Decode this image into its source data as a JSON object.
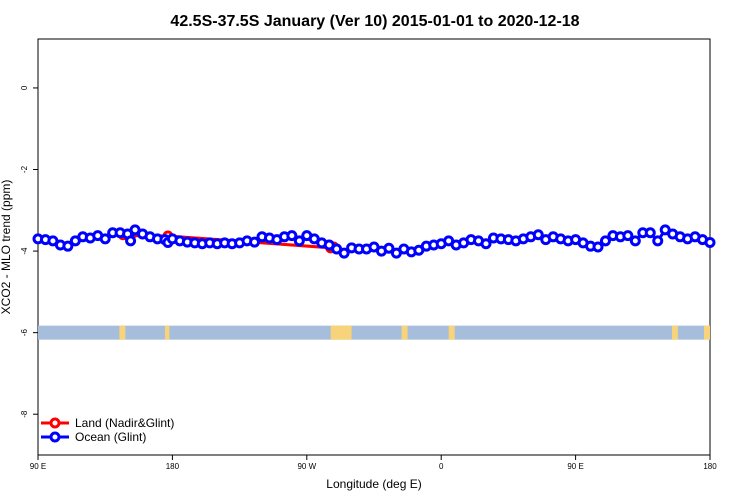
{
  "chart_data": {
    "type": "line",
    "title": "42.5S-37.5S January (Ver 10)   2015-01-01 to 2020-12-18",
    "xlabel": "Longitude (deg E)",
    "ylabel": "XCO2 - MLO trend (ppm)",
    "xlim": [
      90,
      540
    ],
    "ylim": [
      -9,
      1.2
    ],
    "xticks": [
      {
        "value": 90,
        "label": "90 E"
      },
      {
        "value": 180,
        "label": "180"
      },
      {
        "value": 270,
        "label": "90 W"
      },
      {
        "value": 360,
        "label": "0"
      },
      {
        "value": 450,
        "label": "90 E"
      },
      {
        "value": 540,
        "label": "180"
      }
    ],
    "yticks": [
      {
        "value": 0,
        "label": "0"
      },
      {
        "value": -2,
        "label": "-2"
      },
      {
        "value": -4,
        "label": "-4"
      },
      {
        "value": -6,
        "label": "-6"
      },
      {
        "value": -8,
        "label": "-8"
      }
    ],
    "legend_position": "bottom-left",
    "land_sea_strip": {
      "y_center": -6,
      "ocean_color": "#a6bddb",
      "land_color": "#f7d47a",
      "land_x_ranges": [
        [
          144.5,
          148.5
        ],
        [
          175,
          178
        ],
        [
          286,
          300
        ],
        [
          333.5,
          337.5
        ],
        [
          365,
          369
        ],
        [
          514.5,
          518.5
        ],
        [
          536,
          540
        ]
      ]
    },
    "series": [
      {
        "name": "Land (Nadir&Glint)",
        "color": "#ff0000",
        "x": [
          147,
          152,
          177,
          286,
          288
        ],
        "y": [
          -3.6,
          -3.62,
          -3.63,
          -3.92,
          -3.9
        ]
      },
      {
        "name": "Ocean (Glint)",
        "color": "#0000ff",
        "x": [
          90,
          95,
          100,
          105,
          110,
          115,
          120,
          125,
          130,
          135,
          140,
          145,
          150,
          152,
          155,
          160,
          165,
          170,
          175,
          177,
          180,
          185,
          190,
          195,
          200,
          205,
          210,
          215,
          220,
          225,
          230,
          235,
          240,
          245,
          250,
          255,
          260,
          265,
          270,
          275,
          280,
          285,
          290,
          295,
          300,
          305,
          310,
          315,
          320,
          325,
          330,
          335,
          340,
          345,
          350,
          355,
          360,
          365,
          370,
          375,
          380,
          385,
          390,
          395,
          400,
          405,
          410,
          415,
          420,
          425,
          430,
          435,
          440,
          445,
          450,
          455,
          460,
          465,
          470,
          475,
          480,
          485,
          490,
          495,
          500,
          505,
          510,
          515,
          520,
          525,
          530,
          535,
          540
        ],
        "y": [
          -3.7,
          -3.72,
          -3.75,
          -3.85,
          -3.88,
          -3.75,
          -3.65,
          -3.68,
          -3.62,
          -3.7,
          -3.55,
          -3.55,
          -3.58,
          -3.75,
          -3.48,
          -3.58,
          -3.65,
          -3.7,
          -3.72,
          -3.79,
          -3.7,
          -3.75,
          -3.78,
          -3.8,
          -3.82,
          -3.8,
          -3.82,
          -3.8,
          -3.82,
          -3.8,
          -3.75,
          -3.78,
          -3.65,
          -3.68,
          -3.72,
          -3.65,
          -3.62,
          -3.75,
          -3.62,
          -3.7,
          -3.8,
          -3.85,
          -3.95,
          -4.05,
          -3.92,
          -3.95,
          -3.95,
          -3.9,
          -4.0,
          -3.93,
          -4.05,
          -3.95,
          -4.02,
          -3.98,
          -3.88,
          -3.85,
          -3.82,
          -3.75,
          -3.85,
          -3.8,
          -3.72,
          -3.75,
          -3.82,
          -3.68,
          -3.7,
          -3.72,
          -3.75,
          -3.7,
          -3.65,
          -3.6,
          -3.72,
          -3.65,
          -3.7,
          -3.75,
          -3.72,
          -3.8,
          -3.88,
          -3.9,
          -3.75,
          -3.62,
          -3.65,
          -3.62,
          -3.75,
          -3.55,
          -3.55,
          -3.75,
          -3.48,
          -3.58,
          -3.65,
          -3.7,
          -3.65,
          -3.72,
          -3.79
        ]
      }
    ]
  }
}
